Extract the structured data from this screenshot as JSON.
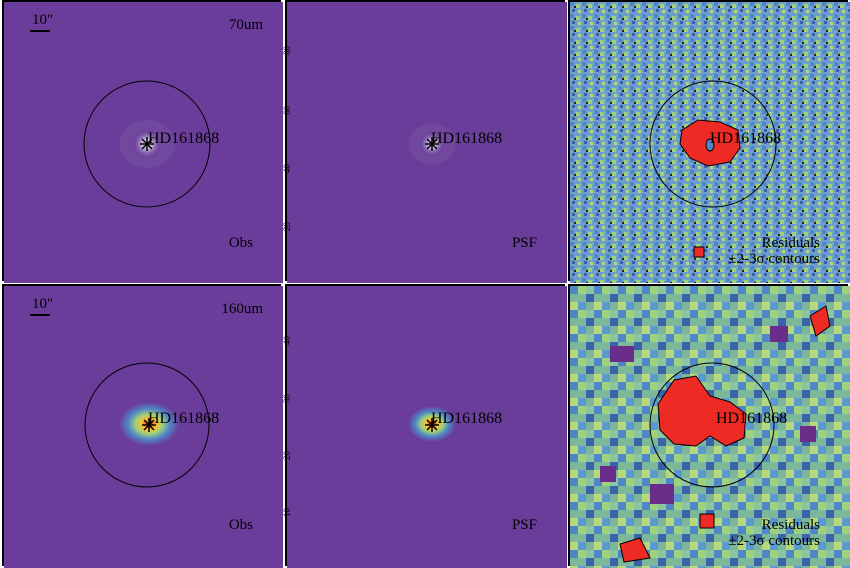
{
  "target": "HD161868",
  "scale_bar_label": "10\"",
  "rows": [
    {
      "band": "70um",
      "panels": {
        "obs": {
          "label": "Obs"
        },
        "psf": {
          "label": "PSF"
        },
        "res": {
          "label_line1": "Residuals",
          "label_line2": "±2-3σ contours"
        }
      },
      "psf_ticks": [
        "80",
        "60",
        "40",
        "20"
      ]
    },
    {
      "band": "160um",
      "panels": {
        "obs": {
          "label": "Obs"
        },
        "psf": {
          "label": "PSF"
        },
        "res": {
          "label_line1": "Residuals",
          "label_line2": "±2-3σ contours"
        }
      },
      "psf_ticks": [
        "40",
        "30",
        "20",
        "10"
      ]
    }
  ],
  "colors": {
    "background": "#6a3d9a",
    "core": "#ffffff",
    "residual_blue": "#4f86c6",
    "residual_green": "#9fd07a",
    "residual_red": "#ee2a24",
    "residual_purple": "#6a2d8a"
  }
}
